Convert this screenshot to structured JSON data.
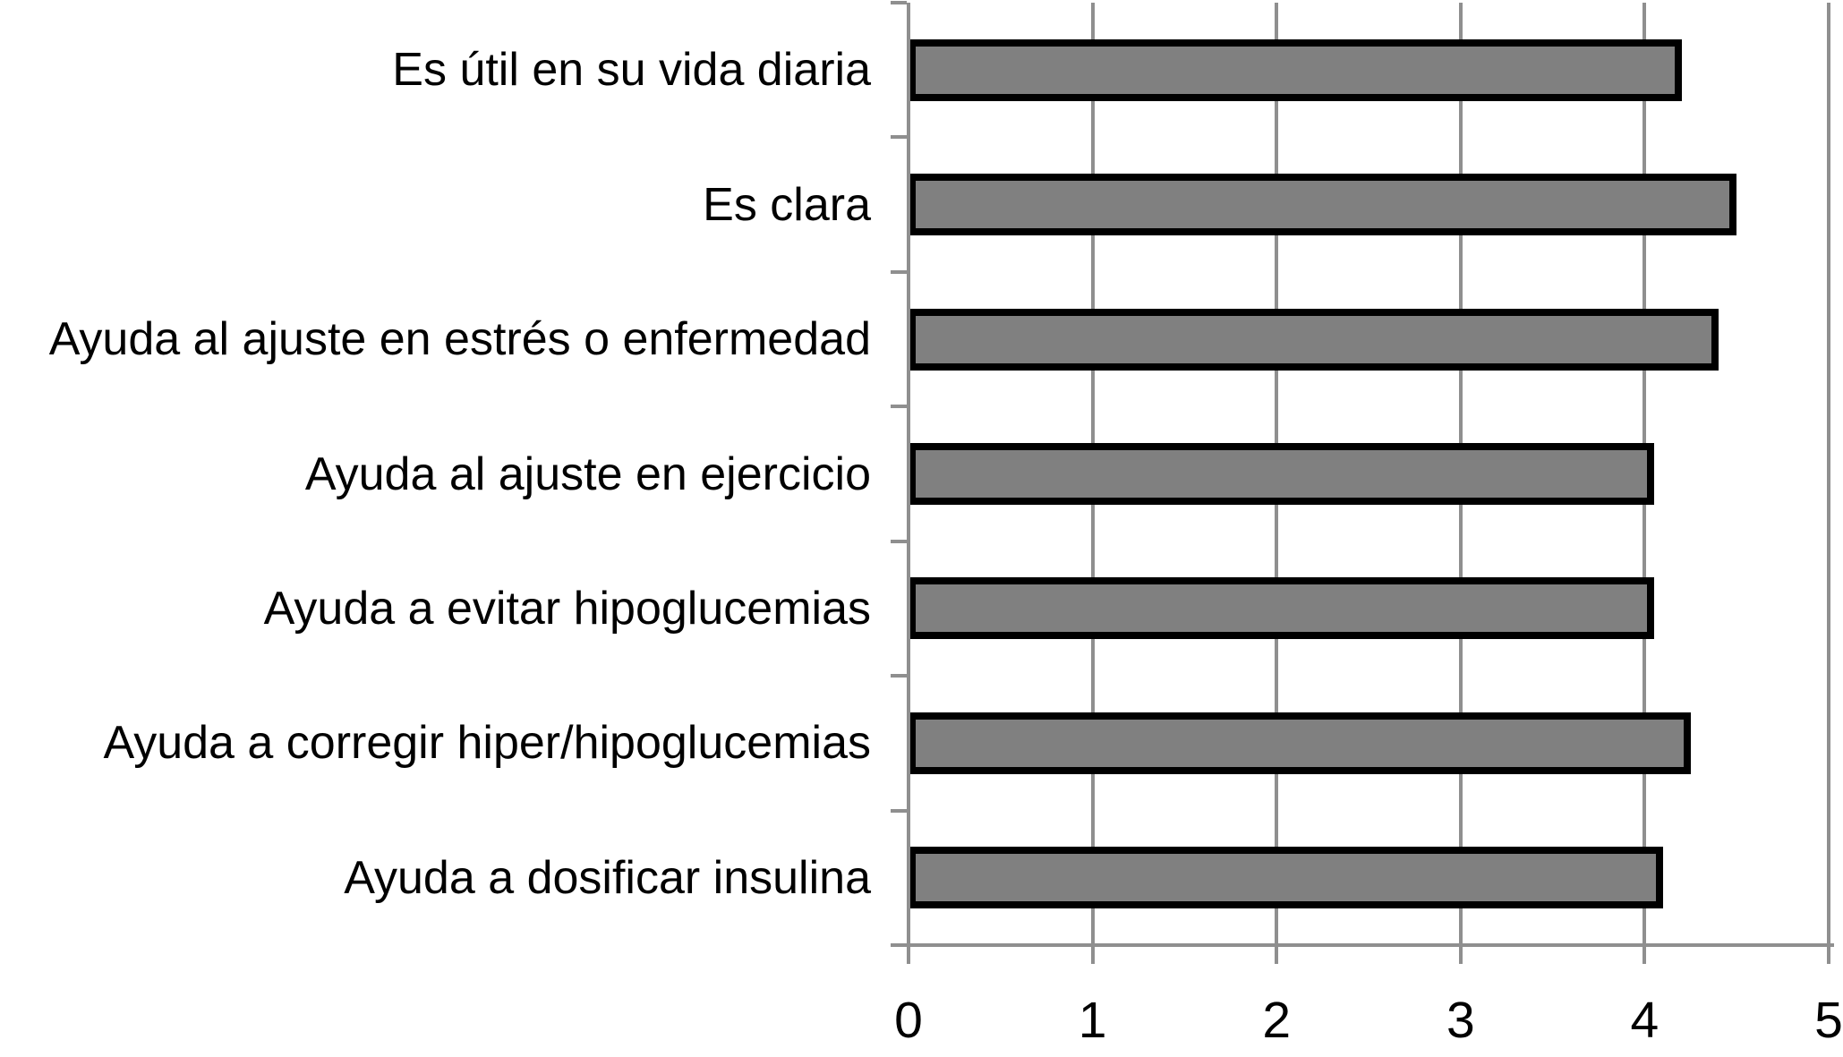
{
  "chart_data": {
    "type": "bar",
    "orientation": "horizontal",
    "title": "",
    "xlabel": "",
    "ylabel": "",
    "categories": [
      "Es útil en su vida diaria",
      "Es clara",
      "Ayuda al ajuste en estrés o enfermedad",
      "Ayuda al ajuste en ejercicio",
      "Ayuda a evitar hipoglucemias",
      "Ayuda a corregir hiper/hipoglucemias",
      "Ayuda a dosificar insulina"
    ],
    "values": [
      4.2,
      4.5,
      4.4,
      4.05,
      4.05,
      4.25,
      4.1
    ],
    "xlim": [
      0,
      5
    ],
    "x_ticks": [
      "0",
      "1",
      "2",
      "3",
      "4",
      "5"
    ],
    "grid": true,
    "legend": "none",
    "colors": {
      "bar_fill": "#808080",
      "bar_border": "#000000",
      "grid_line": "#8f8f8f",
      "axis_line": "#8f8f8f",
      "text": "#000000",
      "background": "#ffffff"
    }
  }
}
